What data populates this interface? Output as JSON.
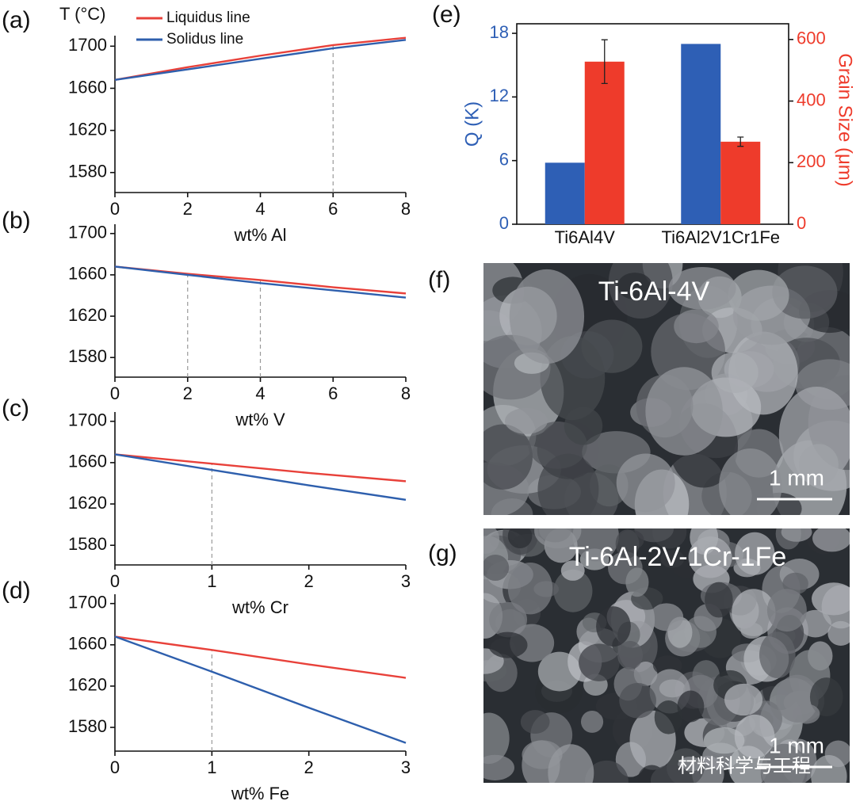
{
  "chart_data": [
    {
      "type": "line",
      "panel": "(a)",
      "ylabel": "T (°C)",
      "xlabel": "wt% Al",
      "x": [
        0,
        2,
        4,
        6,
        8
      ],
      "xlim": [
        0,
        8
      ],
      "xticks": [
        0,
        2,
        4,
        6,
        8
      ],
      "ylim": [
        1561,
        1710
      ],
      "yticks": [
        1580,
        1620,
        1660,
        1700
      ],
      "legend": "top-left",
      "vlines": [
        6
      ],
      "series": [
        {
          "name": "Liquidus line",
          "color": "#e8413a",
          "values": [
            1668,
            1680,
            1691,
            1701,
            1708
          ]
        },
        {
          "name": "Solidus line",
          "color": "#2e5fad",
          "values": [
            1668,
            1678,
            1688,
            1698,
            1706
          ]
        }
      ]
    },
    {
      "type": "line",
      "panel": "(b)",
      "xlabel": "wt% V",
      "x": [
        0,
        2,
        4,
        6,
        8
      ],
      "xlim": [
        0,
        8
      ],
      "xticks": [
        0,
        2,
        4,
        6,
        8
      ],
      "ylim": [
        1561,
        1709
      ],
      "yticks": [
        1580,
        1620,
        1660,
        1700
      ],
      "vlines": [
        2,
        4
      ],
      "series": [
        {
          "color": "#e8413a",
          "values": [
            1668,
            1661,
            1655,
            1648,
            1642
          ]
        },
        {
          "color": "#2e5fad",
          "values": [
            1668,
            1660,
            1652,
            1645,
            1638
          ]
        }
      ]
    },
    {
      "type": "line",
      "panel": "(c)",
      "xlabel": "wt% Cr",
      "x": [
        0,
        1,
        2,
        3
      ],
      "xlim": [
        0,
        3
      ],
      "xticks": [
        0,
        1,
        2,
        3
      ],
      "ylim": [
        1561,
        1709
      ],
      "yticks": [
        1580,
        1620,
        1660,
        1700
      ],
      "vlines": [
        1
      ],
      "series": [
        {
          "color": "#e8413a",
          "values": [
            1668,
            1659,
            1650,
            1642
          ]
        },
        {
          "color": "#2e5fad",
          "values": [
            1668,
            1653,
            1638,
            1624
          ]
        }
      ]
    },
    {
      "type": "line",
      "panel": "(d)",
      "xlabel": "wt% Fe",
      "x": [
        0,
        1,
        2,
        3
      ],
      "xlim": [
        0,
        3
      ],
      "xticks": [
        0,
        1,
        2,
        3
      ],
      "ylim": [
        1557,
        1709
      ],
      "yticks": [
        1580,
        1620,
        1660,
        1700
      ],
      "vlines": [
        1
      ],
      "series": [
        {
          "color": "#e8413a",
          "values": [
            1668,
            1655,
            1641,
            1628
          ]
        },
        {
          "color": "#2e5fad",
          "values": [
            1668,
            1634,
            1599,
            1565
          ]
        }
      ]
    },
    {
      "type": "bar",
      "panel": "(e)",
      "ylabel": "Q (K)",
      "y2label": "Grain Size (μm)",
      "categories": [
        "Ti6Al4V",
        "Ti6Al2V1Cr1Fe"
      ],
      "ylim": [
        0,
        18.9
      ],
      "yticks": [
        0,
        6,
        12,
        18
      ],
      "y2lim": [
        0,
        651
      ],
      "y2ticks": [
        0,
        200,
        400,
        600
      ],
      "series": [
        {
          "name": "Q",
          "color": "#2e5fb5",
          "values": [
            5.8,
            17
          ]
        },
        {
          "name": "Grain Size",
          "color": "#ee3b2b",
          "axis": "y2",
          "values": [
            528,
            268
          ],
          "errors": [
            71,
            15
          ]
        }
      ]
    }
  ],
  "images": [
    {
      "panel": "(f)",
      "caption": "Ti-6Al-4V",
      "scale": "1 mm"
    },
    {
      "panel": "(g)",
      "caption": "Ti-6Al-2V-1Cr-1Fe",
      "scale": "1 mm"
    }
  ],
  "watermark": "材料科学与工程"
}
